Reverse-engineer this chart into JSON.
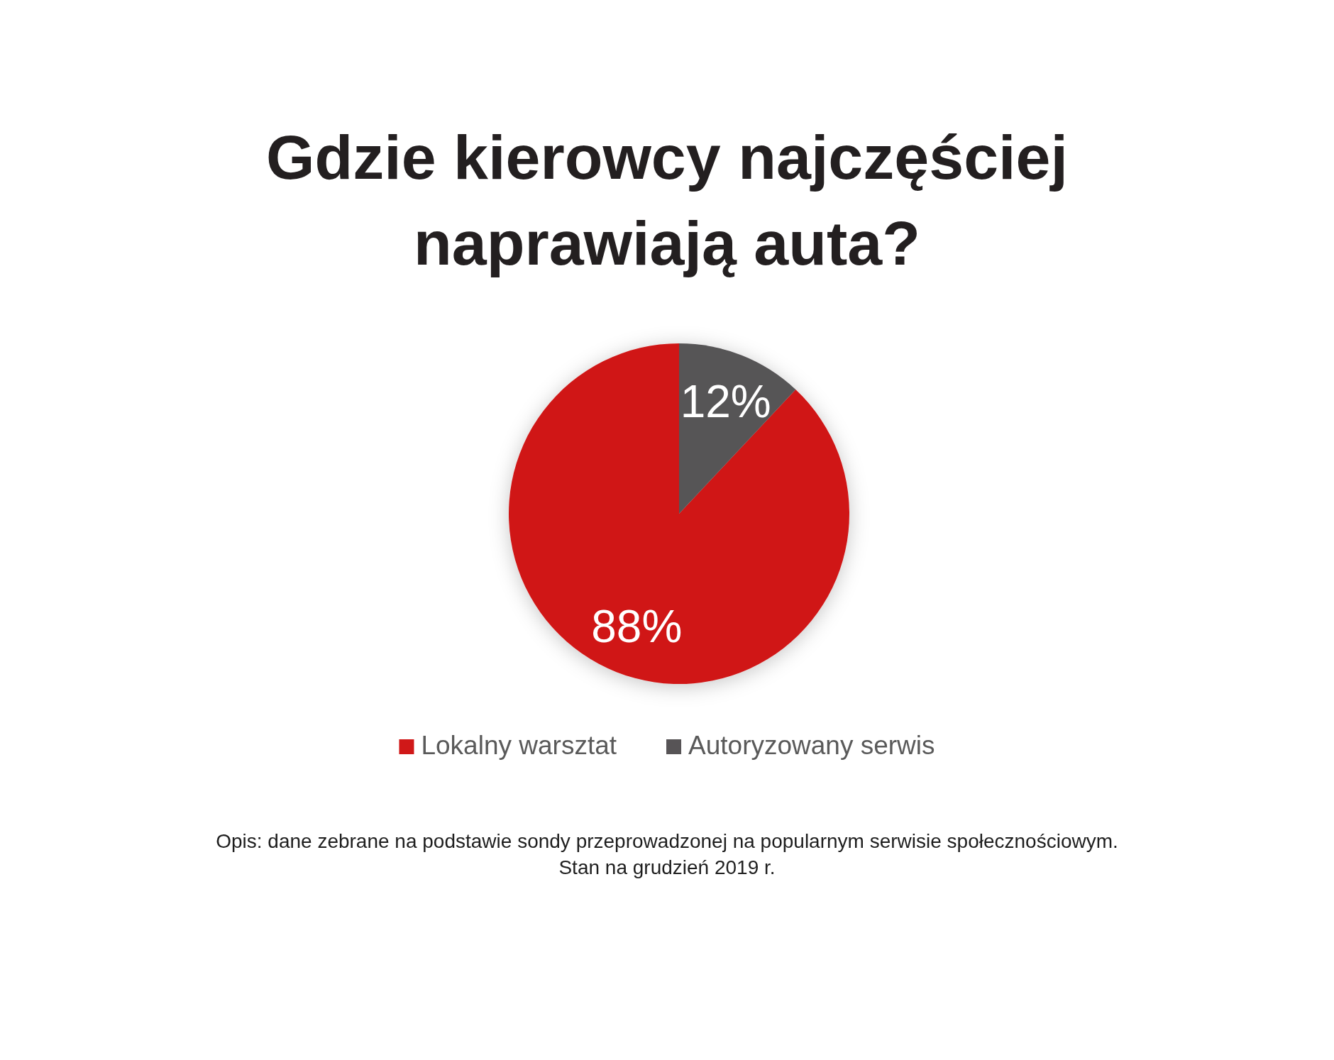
{
  "chart_data": {
    "type": "pie",
    "title": "Gdzie kierowcy najczęściej naprawiają auta?",
    "categories": [
      "Lokalny warsztat",
      "Autoryzowany serwis"
    ],
    "values": [
      88,
      12
    ],
    "colors": [
      "#d01818",
      "#575456"
    ],
    "value_labels": [
      "88%",
      "12%"
    ],
    "legend": "bottom",
    "annotations": [
      "Opis: dane zebrane na podstawie sondy przeprowadzonej na popularnym serwisie społecznościowym.",
      "Stan na grudzień 2019 r."
    ]
  }
}
